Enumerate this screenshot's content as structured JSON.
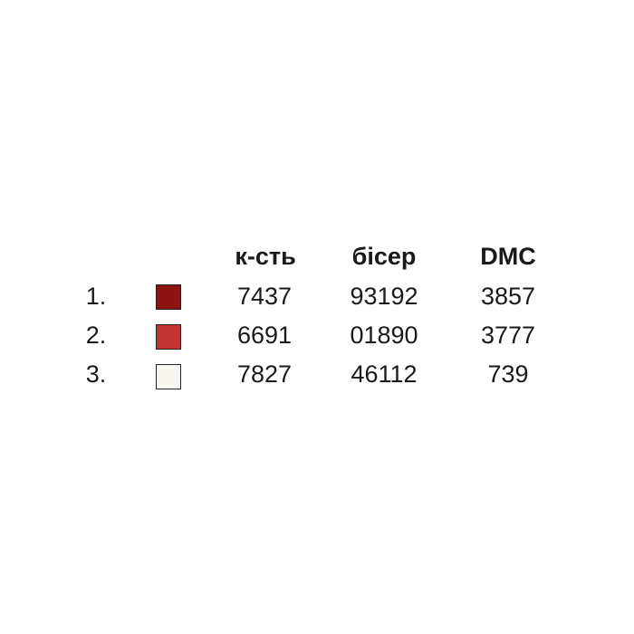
{
  "headers": [
    "к-сть",
    "бісер",
    "DMC"
  ],
  "rows": [
    {
      "index": "1.",
      "color": "#8e1212",
      "qty": "7437",
      "bead": "93192",
      "dmc": "3857"
    },
    {
      "index": "2.",
      "color": "#c33333",
      "qty": "6691",
      "bead": "01890",
      "dmc": "3777"
    },
    {
      "index": "3.",
      "color": "#f7f5ef",
      "qty": "7827",
      "bead": "46112",
      "dmc": "739"
    }
  ]
}
